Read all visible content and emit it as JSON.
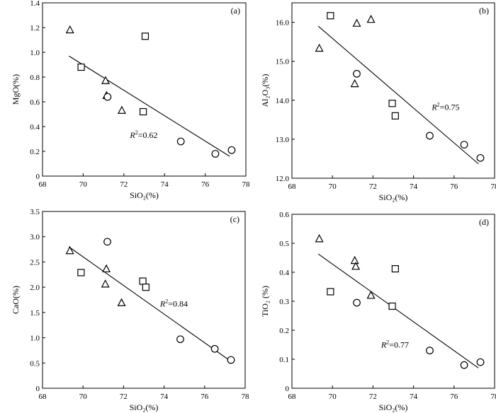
{
  "chart_data": [
    {
      "type": "scatter",
      "panel": "(a)",
      "xlabel": "SiO₂(%)",
      "ylabel": "MgO(%)",
      "xlim": [
        68,
        78
      ],
      "ylim": [
        0,
        1.4
      ],
      "xticks": [
        68,
        70,
        72,
        74,
        76,
        78
      ],
      "yticks": [
        0,
        0.2,
        0.4,
        0.6,
        0.8,
        1.0,
        1.2,
        1.4
      ],
      "y_decimals": 1,
      "series": [
        {
          "marker": "triangle",
          "points": [
            [
              69.35,
              1.18
            ],
            [
              71.1,
              0.77
            ],
            [
              71.15,
              0.65
            ],
            [
              71.9,
              0.53
            ]
          ]
        },
        {
          "marker": "square",
          "points": [
            [
              69.9,
              0.88
            ],
            [
              73.05,
              1.13
            ],
            [
              72.95,
              0.52
            ]
          ]
        },
        {
          "marker": "circle",
          "points": [
            [
              71.2,
              0.64
            ],
            [
              74.8,
              0.28
            ],
            [
              76.5,
              0.18
            ],
            [
              77.3,
              0.21
            ]
          ]
        }
      ],
      "trendline": [
        [
          69.3,
          0.97
        ],
        [
          77.2,
          0.16
        ]
      ],
      "annotation": {
        "prefix": "R",
        "sup": "2",
        "suffix": "=0.62",
        "x": 72.3,
        "y": 0.31
      }
    },
    {
      "type": "scatter",
      "panel": "(b)",
      "xlabel": "SiO₂(%)",
      "ylabel": "Al₂O₃(%)",
      "xlim": [
        68,
        78
      ],
      "ylim": [
        12.0,
        16.5
      ],
      "xticks": [
        68,
        70,
        72,
        74,
        76,
        78
      ],
      "yticks": [
        12.0,
        13.0,
        14.0,
        15.0,
        16.0
      ],
      "y_decimals": 1,
      "series": [
        {
          "marker": "triangle",
          "points": [
            [
              69.35,
              15.33
            ],
            [
              71.2,
              15.97
            ],
            [
              71.9,
              16.07
            ],
            [
              71.1,
              14.42
            ]
          ]
        },
        {
          "marker": "square",
          "points": [
            [
              69.9,
              16.17
            ],
            [
              72.95,
              13.92
            ],
            [
              73.1,
              13.6
            ]
          ]
        },
        {
          "marker": "circle",
          "points": [
            [
              71.2,
              14.68
            ],
            [
              74.8,
              13.09
            ],
            [
              76.5,
              12.86
            ],
            [
              77.3,
              12.52
            ]
          ]
        }
      ],
      "trendline": [
        [
          69.3,
          15.9
        ],
        [
          77.2,
          12.37
        ]
      ],
      "annotation": {
        "prefix": "R",
        "sup": "2",
        "suffix": "=0.75",
        "x": 74.9,
        "y": 13.75
      }
    },
    {
      "type": "scatter",
      "panel": "(c)",
      "xlabel": "SiO₂(%)",
      "ylabel": "CaO(%)",
      "xlim": [
        68,
        78
      ],
      "ylim": [
        0,
        3.5
      ],
      "xticks": [
        68,
        70,
        72,
        74,
        76,
        78
      ],
      "yticks": [
        0,
        0.5,
        1.0,
        1.5,
        2.0,
        2.5,
        3.0,
        3.5
      ],
      "y_decimals": 1,
      "series": [
        {
          "marker": "triangle",
          "points": [
            [
              69.35,
              2.72
            ],
            [
              71.15,
              2.36
            ],
            [
              71.1,
              2.06
            ],
            [
              71.9,
              1.69
            ]
          ]
        },
        {
          "marker": "square",
          "points": [
            [
              69.9,
              2.29
            ],
            [
              72.95,
              2.12
            ],
            [
              73.1,
              2.0
            ]
          ]
        },
        {
          "marker": "circle",
          "points": [
            [
              71.2,
              2.9
            ],
            [
              74.8,
              0.97
            ],
            [
              76.5,
              0.78
            ],
            [
              77.3,
              0.56
            ]
          ]
        }
      ],
      "trendline": [
        [
          69.3,
          2.8
        ],
        [
          77.2,
          0.56
        ]
      ],
      "annotation": {
        "prefix": "R",
        "sup": "2",
        "suffix": "=0.84",
        "x": 73.8,
        "y": 1.62
      }
    },
    {
      "type": "scatter",
      "panel": "(d)",
      "xlabel": "SiO₂(%)",
      "ylabel": "TiO₂ (%)",
      "xlim": [
        68,
        78
      ],
      "ylim": [
        0,
        0.6
      ],
      "xticks": [
        68,
        70,
        72,
        74,
        76,
        78
      ],
      "yticks": [
        0,
        0.1,
        0.2,
        0.3,
        0.4,
        0.5,
        0.6
      ],
      "y_decimals": 1,
      "series": [
        {
          "marker": "triangle",
          "points": [
            [
              69.35,
              0.515
            ],
            [
              71.1,
              0.44
            ],
            [
              71.15,
              0.42
            ],
            [
              71.9,
              0.32
            ]
          ]
        },
        {
          "marker": "square",
          "points": [
            [
              69.9,
              0.333
            ],
            [
              73.1,
              0.412
            ],
            [
              72.95,
              0.283
            ]
          ]
        },
        {
          "marker": "circle",
          "points": [
            [
              71.2,
              0.295
            ],
            [
              74.8,
              0.13
            ],
            [
              76.5,
              0.08
            ],
            [
              77.3,
              0.09
            ]
          ]
        }
      ],
      "trendline": [
        [
          69.3,
          0.463
        ],
        [
          77.2,
          0.07
        ]
      ],
      "annotation": {
        "prefix": "R",
        "sup": "2",
        "suffix": "=0.77",
        "x": 72.4,
        "y": 0.14
      }
    }
  ]
}
